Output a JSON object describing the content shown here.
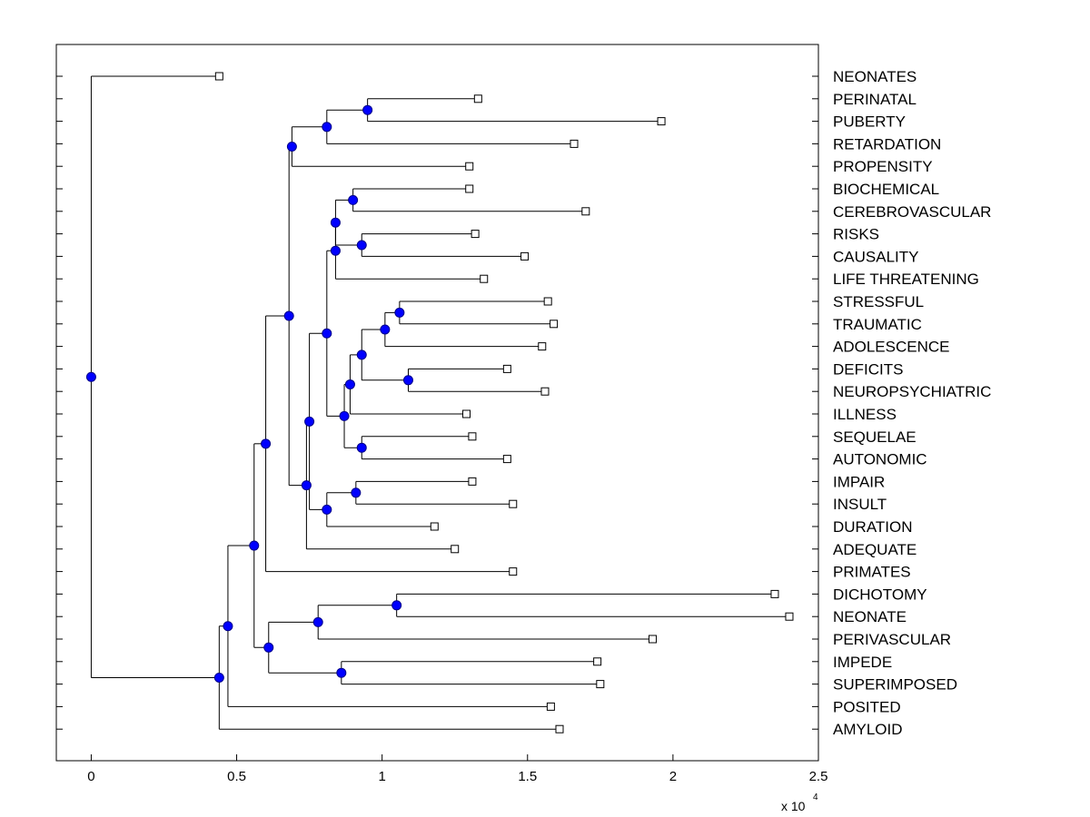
{
  "chart_data": {
    "type": "dendrogram",
    "title": "",
    "xlabel": "",
    "ylabel": "",
    "x_scale_label": "x 10",
    "x_scale_exponent": "4",
    "xlim": [
      -0.12,
      2.5
    ],
    "xticks": [
      0,
      0.5,
      1,
      1.5,
      2,
      2.5
    ],
    "xtick_labels": [
      "0",
      "0.5",
      "1",
      "1.5",
      "2",
      "2.5"
    ],
    "grid": false,
    "colors": {
      "node": "#0000ff",
      "line": "#000000",
      "leaf_marker": "#ffffff"
    },
    "leaves": [
      {
        "label": "NEONATES",
        "x": 0.44
      },
      {
        "label": "PERINATAL",
        "x": 1.33
      },
      {
        "label": "PUBERTY",
        "x": 1.96
      },
      {
        "label": "RETARDATION",
        "x": 1.66
      },
      {
        "label": "PROPENSITY",
        "x": 1.3
      },
      {
        "label": "BIOCHEMICAL",
        "x": 1.3
      },
      {
        "label": "CEREBROVASCULAR",
        "x": 1.7
      },
      {
        "label": "RISKS",
        "x": 1.32
      },
      {
        "label": "CAUSALITY",
        "x": 1.49
      },
      {
        "label": "LIFE THREATENING",
        "x": 1.35
      },
      {
        "label": "STRESSFUL",
        "x": 1.57
      },
      {
        "label": "TRAUMATIC",
        "x": 1.59
      },
      {
        "label": "ADOLESCENCE",
        "x": 1.55
      },
      {
        "label": "DEFICITS",
        "x": 1.43
      },
      {
        "label": "NEUROPSYCHIATRIC",
        "x": 1.56
      },
      {
        "label": "ILLNESS",
        "x": 1.29
      },
      {
        "label": "SEQUELAE",
        "x": 1.31
      },
      {
        "label": "AUTONOMIC",
        "x": 1.43
      },
      {
        "label": "IMPAIR",
        "x": 1.31
      },
      {
        "label": "INSULT",
        "x": 1.45
      },
      {
        "label": "DURATION",
        "x": 1.18
      },
      {
        "label": "ADEQUATE",
        "x": 1.25
      },
      {
        "label": "PRIMATES",
        "x": 1.45
      },
      {
        "label": "DICHOTOMY",
        "x": 2.35
      },
      {
        "label": "NEONATE",
        "x": 2.4
      },
      {
        "label": "PERIVASCULAR",
        "x": 1.93
      },
      {
        "label": "IMPEDE",
        "x": 1.74
      },
      {
        "label": "SUPERIMPOSED",
        "x": 1.75
      },
      {
        "label": "POSITED",
        "x": 1.58
      },
      {
        "label": "AMYLOID",
        "x": 1.61
      }
    ],
    "tree": {
      "x": 0.0,
      "children": [
        {
          "leaf": 0
        },
        {
          "x": 0.44,
          "children": [
            {
              "x": 0.47,
              "children": [
                {
                  "x": 0.56,
                  "children": [
                    {
                      "x": 0.6,
                      "children": [
                        {
                          "x": 0.68,
                          "children": [
                            {
                              "x": 0.69,
                              "children": [
                                {
                                  "x": 0.81,
                                  "children": [
                                    {
                                      "x": 0.95,
                                      "children": [
                                        {
                                          "leaf": 1
                                        },
                                        {
                                          "leaf": 2
                                        }
                                      ]
                                    },
                                    {
                                      "leaf": 3
                                    }
                                  ]
                                },
                                {
                                  "leaf": 4
                                }
                              ]
                            },
                            {
                              "x": 0.74,
                              "children": [
                                {
                                  "x": 0.75,
                                  "children": [
                                    {
                                      "x": 0.81,
                                      "children": [
                                        {
                                          "x": 0.84,
                                          "children": [
                                            {
                                              "x": 0.84,
                                              "children": [
                                                {
                                                  "x": 0.9,
                                                  "children": [
                                                    {
                                                      "leaf": 5
                                                    },
                                                    {
                                                      "leaf": 6
                                                    }
                                                  ]
                                                },
                                                {
                                                  "x": 0.93,
                                                  "children": [
                                                    {
                                                      "leaf": 7
                                                    },
                                                    {
                                                      "leaf": 8
                                                    }
                                                  ]
                                                }
                                              ]
                                            },
                                            {
                                              "leaf": 9
                                            }
                                          ]
                                        },
                                        {
                                          "x": 0.87,
                                          "children": [
                                            {
                                              "x": 0.89,
                                              "children": [
                                                {
                                                  "x": 0.93,
                                                  "children": [
                                                    {
                                                      "x": 1.01,
                                                      "children": [
                                                        {
                                                          "x": 1.06,
                                                          "children": [
                                                            {
                                                              "leaf": 10
                                                            },
                                                            {
                                                              "leaf": 11
                                                            }
                                                          ]
                                                        },
                                                        {
                                                          "leaf": 12
                                                        }
                                                      ]
                                                    },
                                                    {
                                                      "x": 1.09,
                                                      "children": [
                                                        {
                                                          "leaf": 13
                                                        },
                                                        {
                                                          "leaf": 14
                                                        }
                                                      ]
                                                    }
                                                  ]
                                                },
                                                {
                                                  "leaf": 15
                                                }
                                              ]
                                            },
                                            {
                                              "x": 0.93,
                                              "children": [
                                                {
                                                  "leaf": 16
                                                },
                                                {
                                                  "leaf": 17
                                                }
                                              ]
                                            }
                                          ]
                                        }
                                      ]
                                    },
                                    {
                                      "x": 0.81,
                                      "children": [
                                        {
                                          "x": 0.91,
                                          "children": [
                                            {
                                              "leaf": 18
                                            },
                                            {
                                              "leaf": 19
                                            }
                                          ]
                                        },
                                        {
                                          "leaf": 20
                                        }
                                      ]
                                    }
                                  ]
                                },
                                {
                                  "leaf": 21
                                }
                              ]
                            }
                          ]
                        },
                        {
                          "leaf": 22
                        }
                      ]
                    },
                    {
                      "x": 0.61,
                      "children": [
                        {
                          "x": 0.78,
                          "children": [
                            {
                              "x": 1.05,
                              "children": [
                                {
                                  "leaf": 23
                                },
                                {
                                  "leaf": 24
                                }
                              ]
                            },
                            {
                              "leaf": 25
                            }
                          ]
                        },
                        {
                          "x": 0.86,
                          "children": [
                            {
                              "leaf": 26
                            },
                            {
                              "leaf": 27
                            }
                          ]
                        }
                      ]
                    }
                  ]
                },
                {
                  "leaf": 28
                }
              ]
            },
            {
              "leaf": 29
            }
          ]
        }
      ]
    }
  }
}
